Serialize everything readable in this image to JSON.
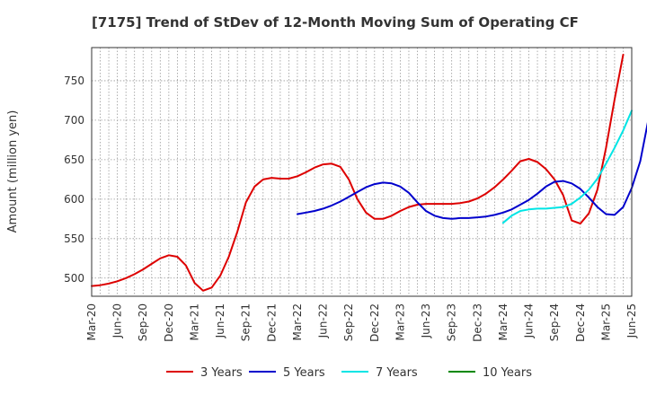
{
  "chart_data": {
    "type": "line",
    "title": "[7175]  Trend of StDev of 12-Month Moving Sum of Operating CF",
    "xlabel": "",
    "ylabel": "Amount (million yen)",
    "x_ticks": [
      "Mar-20",
      "Jun-20",
      "Sep-20",
      "Dec-20",
      "Mar-21",
      "Jun-21",
      "Sep-21",
      "Dec-21",
      "Mar-22",
      "Jun-22",
      "Sep-22",
      "Dec-22",
      "Mar-23",
      "Jun-23",
      "Sep-23",
      "Dec-23",
      "Mar-24",
      "Jun-24",
      "Sep-24",
      "Dec-24",
      "Mar-25",
      "Jun-25"
    ],
    "y_ticks": [
      500,
      550,
      600,
      650,
      700,
      750
    ],
    "ylim": [
      477,
      792
    ],
    "grid": true,
    "legend_position": "bottom",
    "series": [
      {
        "name": "3 Years",
        "color": "#dd0000",
        "start_index": 0,
        "values": [
          490,
          491,
          493,
          496,
          500,
          505,
          511,
          518,
          525,
          529,
          527,
          516,
          494,
          484,
          488,
          503,
          527,
          559,
          596,
          616,
          625,
          627,
          626,
          626,
          629,
          634,
          640,
          644,
          645,
          641,
          625,
          600,
          583,
          575,
          575,
          579,
          585,
          590,
          593,
          594,
          594,
          594,
          594,
          595,
          597,
          601,
          607,
          615,
          625,
          636,
          648,
          651,
          647,
          638,
          625,
          605,
          573,
          569,
          582,
          612,
          665,
          726,
          783
        ]
      },
      {
        "name": "5 Years",
        "color": "#0000cc",
        "start_index": 24,
        "values": [
          581,
          583,
          585,
          588,
          592,
          597,
          603,
          609,
          615,
          619,
          621,
          620,
          616,
          608,
          596,
          585,
          579,
          576,
          575,
          576,
          576,
          577,
          578,
          580,
          583,
          587,
          593,
          599,
          607,
          616,
          622,
          623,
          620,
          613,
          602,
          590,
          581,
          580,
          590,
          614,
          648,
          704,
          763
        ]
      },
      {
        "name": "7 Years",
        "color": "#00e5e5",
        "start_index": 48,
        "values": [
          570,
          579,
          585,
          587,
          588,
          588,
          589,
          590,
          594,
          602,
          612,
          626,
          645,
          665,
          687,
          712
        ]
      },
      {
        "name": "10 Years",
        "color": "#008800",
        "start_index": null,
        "values": []
      }
    ]
  }
}
